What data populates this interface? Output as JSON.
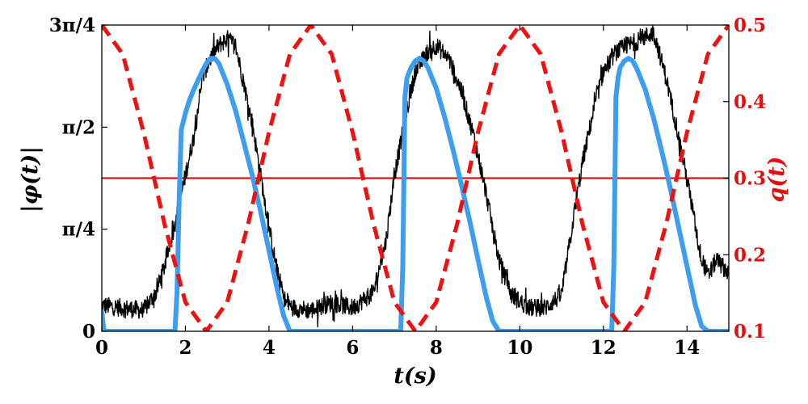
{
  "chart_data": {
    "type": "line",
    "title": "",
    "xlabel": "t(s)",
    "ylabel_left": "|φ(t)|",
    "ylabel_right": "q(t)",
    "xlim": [
      0,
      15
    ],
    "ylim_left": [
      0,
      2.3562
    ],
    "ylim_right": [
      0.1,
      0.5
    ],
    "x_ticks": [
      {
        "value": 0,
        "label": "0"
      },
      {
        "value": 2,
        "label": "2"
      },
      {
        "value": 4,
        "label": "4"
      },
      {
        "value": 6,
        "label": "6"
      },
      {
        "value": 8,
        "label": "8"
      },
      {
        "value": 10,
        "label": "10"
      },
      {
        "value": 12,
        "label": "12"
      },
      {
        "value": 14,
        "label": "14"
      }
    ],
    "y_left_ticks": [
      {
        "value": 0,
        "label": "0"
      },
      {
        "value": 0.7854,
        "label": "π/4"
      },
      {
        "value": 1.5708,
        "label": "π/2"
      },
      {
        "value": 2.3562,
        "label": "3π/4"
      }
    ],
    "y_right_ticks": [
      {
        "value": 0.1,
        "label": "0.1"
      },
      {
        "value": 0.2,
        "label": "0.2"
      },
      {
        "value": 0.3,
        "label": "0.3"
      },
      {
        "value": 0.4,
        "label": "0.4"
      },
      {
        "value": 0.5,
        "label": "0.5"
      }
    ],
    "colors": {
      "measured": "#000000",
      "model": "#3d9ef0",
      "q_forcing": "#ee1111",
      "threshold": "#e01010",
      "right_axis": "#e01010"
    },
    "series": [
      {
        "name": "phi_measured",
        "axis": "left",
        "style": "noisy-black",
        "x": [
          0,
          0.5,
          1.0,
          1.3,
          1.5,
          1.8,
          2.0,
          2.2,
          2.4,
          2.6,
          2.8,
          3.0,
          3.2,
          3.4,
          3.6,
          3.8,
          4.0,
          4.2,
          4.4,
          4.6,
          5.0,
          5.5,
          6.0,
          6.5,
          6.8,
          7.0,
          7.3,
          7.5,
          7.8,
          8.0,
          8.3,
          8.6,
          8.9,
          9.2,
          9.5,
          9.8,
          10.2,
          10.6,
          11.0,
          11.3,
          11.5,
          11.8,
          12.0,
          12.3,
          12.6,
          12.9,
          13.2,
          13.5,
          13.8,
          14.1,
          14.3,
          14.5,
          14.7,
          15.0
        ],
        "values": [
          0.2,
          0.18,
          0.16,
          0.3,
          0.5,
          0.9,
          1.2,
          1.5,
          1.95,
          2.1,
          2.2,
          2.25,
          2.2,
          1.9,
          1.6,
          1.2,
          0.8,
          0.45,
          0.22,
          0.18,
          0.16,
          0.22,
          0.18,
          0.3,
          0.7,
          1.2,
          1.7,
          2.0,
          2.15,
          2.2,
          2.1,
          1.85,
          1.5,
          1.05,
          0.55,
          0.28,
          0.18,
          0.18,
          0.28,
          0.9,
          1.3,
          1.75,
          2.0,
          2.15,
          2.2,
          2.25,
          2.3,
          1.95,
          1.5,
          1.0,
          0.62,
          0.42,
          0.55,
          0.45
        ]
      },
      {
        "name": "phi_model",
        "axis": "left",
        "style": "solid-blue",
        "x": [
          0,
          0.05,
          1.75,
          1.8,
          1.85,
          1.9,
          2.0,
          2.1,
          2.2,
          2.3,
          2.4,
          2.5,
          2.6,
          2.7,
          2.8,
          2.9,
          3.0,
          3.2,
          3.4,
          3.6,
          3.8,
          4.0,
          4.2,
          4.35,
          4.5,
          7.15,
          7.2,
          7.25,
          7.3,
          7.4,
          7.5,
          7.6,
          7.7,
          7.8,
          8.0,
          8.2,
          8.4,
          8.6,
          8.8,
          9.0,
          9.2,
          9.35,
          9.5,
          12.2,
          12.25,
          12.3,
          12.35,
          12.4,
          12.5,
          12.6,
          12.7,
          12.8,
          13.0,
          13.2,
          13.4,
          13.6,
          13.8,
          14.0,
          14.2,
          14.35,
          14.5,
          15.0
        ],
        "values": [
          0.15,
          0.0,
          0.0,
          0.3,
          1.0,
          1.55,
          1.68,
          1.78,
          1.86,
          1.93,
          2.0,
          2.06,
          2.1,
          2.1,
          2.06,
          1.98,
          1.9,
          1.7,
          1.45,
          1.2,
          0.92,
          0.62,
          0.32,
          0.12,
          0.0,
          0.0,
          0.5,
          1.8,
          1.95,
          2.03,
          2.08,
          2.1,
          2.08,
          2.03,
          1.87,
          1.65,
          1.4,
          1.13,
          0.85,
          0.55,
          0.26,
          0.08,
          0.0,
          0.0,
          0.5,
          1.8,
          1.95,
          2.03,
          2.08,
          2.1,
          2.08,
          2.02,
          1.86,
          1.64,
          1.38,
          1.1,
          0.8,
          0.5,
          0.2,
          0.04,
          0.0,
          0.0
        ]
      },
      {
        "name": "q_forcing",
        "axis": "right",
        "style": "dashed-red",
        "x": [
          0,
          0.5,
          1.0,
          1.5,
          2.0,
          2.5,
          3.0,
          3.5,
          4.0,
          4.5,
          5.0,
          5.5,
          6.0,
          6.5,
          7.0,
          7.5,
          8.0,
          8.5,
          9.0,
          9.5,
          10.0,
          10.5,
          11.0,
          11.5,
          12.0,
          12.5,
          13.0,
          13.5,
          14.0,
          14.5,
          15.0
        ],
        "values": [
          0.5,
          0.462,
          0.36,
          0.24,
          0.138,
          0.1,
          0.138,
          0.24,
          0.36,
          0.462,
          0.5,
          0.462,
          0.36,
          0.24,
          0.138,
          0.1,
          0.138,
          0.24,
          0.36,
          0.462,
          0.5,
          0.462,
          0.36,
          0.24,
          0.138,
          0.1,
          0.138,
          0.24,
          0.36,
          0.462,
          0.5
        ]
      }
    ],
    "hlines": [
      {
        "name": "threshold",
        "axis": "right",
        "value": 0.3
      }
    ]
  }
}
